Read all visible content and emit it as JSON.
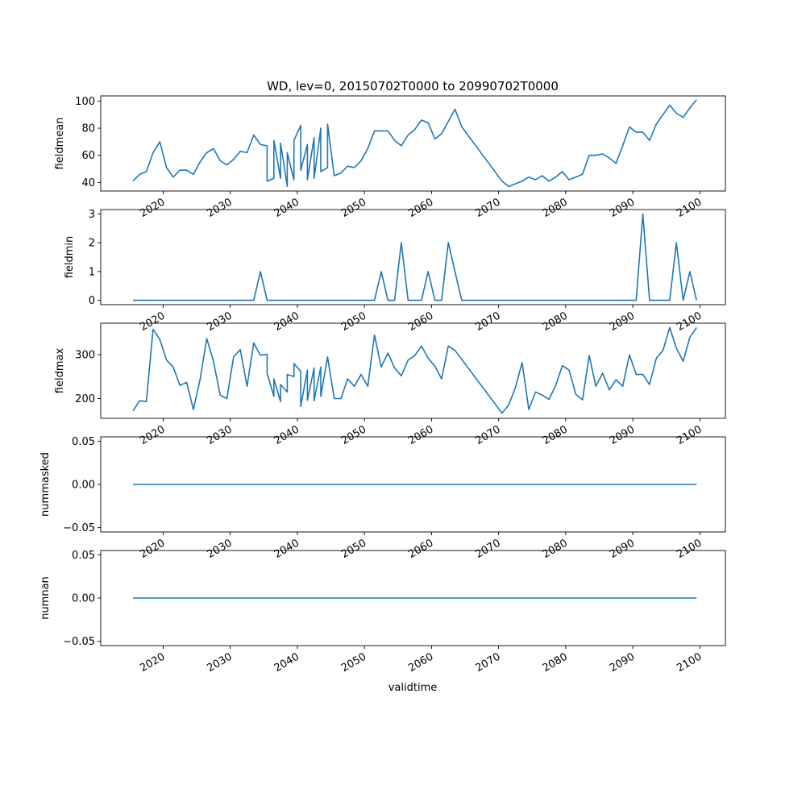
{
  "title": "WD, lev=0, 20150702T0000 to 20990702T0000",
  "xlabel": "validtime",
  "colors": {
    "series": "#1f77b4",
    "axes": "#000000"
  },
  "x_tick_labels": [
    "2020",
    "2030",
    "2040",
    "2050",
    "2060",
    "2070",
    "2080",
    "2090",
    "2100"
  ],
  "chart_data": [
    {
      "type": "line",
      "ylabel": "fieldmean",
      "xlim": [
        2010.7,
        2103.8
      ],
      "ylim": [
        33.7,
        103.8
      ],
      "yticks": [
        40,
        60,
        80,
        100
      ],
      "ytick_labels": [
        "40",
        "60",
        "80",
        "100"
      ],
      "x": [
        2015.5,
        2016.5,
        2017.5,
        2018.5,
        2019.5,
        2020.5,
        2021.5,
        2022.5,
        2023.5,
        2024.5,
        2025.5,
        2026.5,
        2027.5,
        2028.5,
        2029.5,
        2030.5,
        2031.5,
        2032.5,
        2033.5,
        2034.5,
        2035.5,
        2035.5,
        2036.5,
        2036.5,
        2037.5,
        2037.5,
        2038.5,
        2038.5,
        2039.5,
        2039.5,
        2040.5,
        2040.5,
        2041.5,
        2041.5,
        2042.5,
        2042.5,
        2043.5,
        2043.5,
        2044.5,
        2044.5,
        2045.5,
        2046.5,
        2047.5,
        2048.5,
        2049.5,
        2050.5,
        2051.5,
        2052.5,
        2053.5,
        2054.5,
        2055.5,
        2056.5,
        2057.5,
        2058.5,
        2059.5,
        2060.5,
        2061.5,
        2062.5,
        2063.5,
        2064.5,
        2070.5,
        2071.5,
        2072.5,
        2073.5,
        2074.5,
        2075.5,
        2076.5,
        2077.5,
        2078.5,
        2079.5,
        2080.5,
        2081.5,
        2082.5,
        2083.5,
        2084.5,
        2085.5,
        2086.5,
        2087.5,
        2088.5,
        2089.5,
        2090.5,
        2091.5,
        2092.5,
        2093.5,
        2094.5,
        2095.5,
        2096.5,
        2097.5,
        2098.5,
        2099.5
      ],
      "y": [
        41,
        46,
        48,
        62,
        70,
        51,
        44,
        49,
        49,
        46,
        55,
        62,
        65,
        56,
        53,
        57,
        63,
        62,
        75,
        68,
        67,
        41,
        43,
        71,
        43,
        69,
        37,
        62,
        42,
        71,
        82,
        49,
        68,
        42,
        73,
        43,
        80,
        48,
        51,
        83,
        45,
        47,
        52,
        51,
        56,
        65,
        78,
        78,
        78,
        71,
        67,
        75,
        79,
        86,
        84,
        72,
        76,
        85,
        94,
        81,
        41,
        37,
        39,
        41,
        44,
        42,
        45,
        41,
        44,
        48,
        42,
        44,
        46,
        60,
        60,
        61,
        58,
        54,
        67,
        81,
        77,
        77,
        71,
        83,
        90,
        97,
        91,
        88,
        95,
        101
      ]
    },
    {
      "type": "line",
      "ylabel": "fieldmin",
      "xlim": [
        2010.7,
        2103.8
      ],
      "ylim": [
        -0.15,
        3.15
      ],
      "yticks": [
        0,
        1,
        2,
        3
      ],
      "ytick_labels": [
        "0",
        "1",
        "2",
        "3"
      ],
      "x": [
        2015.5,
        2033.5,
        2034.5,
        2035.5,
        2051.5,
        2052.5,
        2053.5,
        2054.5,
        2055.5,
        2056.5,
        2058.5,
        2059.5,
        2060.5,
        2061.5,
        2062.5,
        2063.5,
        2064.5,
        2090.5,
        2091.5,
        2092.5,
        2095.5,
        2096.5,
        2097.5,
        2098.5,
        2099.5
      ],
      "y": [
        0,
        0,
        1,
        0,
        0,
        1,
        0,
        0,
        2,
        0,
        0,
        1,
        0,
        0,
        2,
        1,
        0,
        0,
        3,
        0,
        0,
        2,
        0,
        1,
        0
      ]
    },
    {
      "type": "line",
      "ylabel": "fieldmax",
      "xlim": [
        2010.7,
        2103.8
      ],
      "ylim": [
        155,
        372
      ],
      "yticks": [
        200,
        300
      ],
      "ytick_labels": [
        "200",
        "300"
      ],
      "x": [
        2015.5,
        2016.5,
        2017.5,
        2018.5,
        2019.5,
        2020.5,
        2021.5,
        2022.5,
        2023.5,
        2024.5,
        2025.5,
        2026.5,
        2027.5,
        2028.5,
        2029.5,
        2030.5,
        2031.5,
        2032.5,
        2033.5,
        2034.5,
        2035.5,
        2035.5,
        2036.5,
        2036.5,
        2037.5,
        2037.5,
        2038.5,
        2038.5,
        2039.5,
        2039.5,
        2040.5,
        2040.5,
        2041.5,
        2041.5,
        2042.5,
        2042.5,
        2043.5,
        2043.5,
        2044.5,
        2045.5,
        2046.5,
        2047.5,
        2048.5,
        2049.5,
        2050.5,
        2051.5,
        2052.5,
        2053.5,
        2054.5,
        2055.5,
        2056.5,
        2057.5,
        2058.5,
        2059.5,
        2060.5,
        2061.5,
        2062.5,
        2063.5,
        2070.5,
        2071.5,
        2072.5,
        2073.5,
        2074.5,
        2075.5,
        2076.5,
        2077.5,
        2078.5,
        2079.5,
        2080.5,
        2081.5,
        2082.5,
        2083.5,
        2084.5,
        2085.5,
        2086.5,
        2087.5,
        2088.5,
        2089.5,
        2090.5,
        2091.5,
        2092.5,
        2093.5,
        2094.5,
        2095.5,
        2096.5,
        2097.5,
        2098.5,
        2099.5
      ],
      "y": [
        172,
        195,
        193,
        358,
        335,
        288,
        272,
        230,
        237,
        175,
        243,
        337,
        285,
        208,
        200,
        295,
        312,
        228,
        327,
        299,
        301,
        258,
        205,
        245,
        193,
        232,
        215,
        255,
        250,
        280,
        262,
        182,
        265,
        196,
        270,
        195,
        272,
        205,
        295,
        200,
        200,
        245,
        228,
        255,
        228,
        345,
        272,
        304,
        270,
        252,
        288,
        298,
        320,
        292,
        274,
        245,
        320,
        310,
        167,
        185,
        225,
        282,
        175,
        215,
        208,
        198,
        230,
        275,
        265,
        210,
        197,
        298,
        228,
        258,
        220,
        243,
        228,
        300,
        255,
        255,
        232,
        292,
        310,
        362,
        315,
        285,
        340,
        362
      ]
    },
    {
      "type": "line",
      "ylabel": "nummasked",
      "xlim": [
        2010.7,
        2103.8
      ],
      "ylim": [
        -0.055,
        0.055
      ],
      "yticks": [
        -0.05,
        0,
        0.05
      ],
      "ytick_labels": [
        "−0.05",
        "0.00",
        "0.05"
      ],
      "x": [
        2015.5,
        2099.5
      ],
      "y": [
        0,
        0
      ]
    },
    {
      "type": "line",
      "ylabel": "numnan",
      "xlim": [
        2010.7,
        2103.8
      ],
      "ylim": [
        -0.055,
        0.055
      ],
      "yticks": [
        -0.05,
        0,
        0.05
      ],
      "ytick_labels": [
        "−0.05",
        "0.00",
        "0.05"
      ],
      "x": [
        2015.5,
        2099.5
      ],
      "y": [
        0,
        0
      ]
    }
  ]
}
